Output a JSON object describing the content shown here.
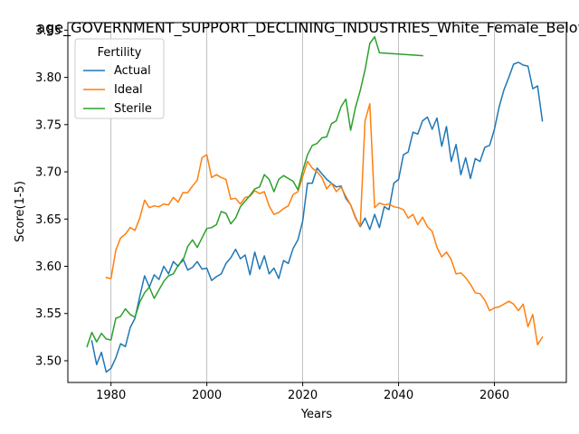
{
  "chart_data": {
    "type": "line",
    "title": "age_GOVERNMENT_SUPPORT_DECLINING_INDUSTRIES_White_Female_Below_",
    "xlabel": "Years",
    "ylabel": "Score(1-5)",
    "xlim": [
      1971,
      2075
    ],
    "ylim": [
      3.477,
      3.858
    ],
    "xticks": [
      1980,
      2000,
      2020,
      2040,
      2060
    ],
    "yticks": [
      3.5,
      3.55,
      3.6,
      3.65,
      3.7,
      3.75,
      3.8,
      3.85
    ],
    "xtick_labels": [
      "1980",
      "2000",
      "2020",
      "2040",
      "2060"
    ],
    "ytick_labels": [
      "3.50",
      "3.55",
      "3.60",
      "3.65",
      "3.70",
      "3.75",
      "3.80",
      "3.85"
    ],
    "grid": "vertical",
    "legend": {
      "title": "Fertility",
      "placement": "top-left"
    },
    "series": [
      {
        "name": "Actual",
        "color": "#1f77b4",
        "x": [
          1976,
          1977,
          1978,
          1979,
          1980,
          1981,
          1982,
          1983,
          1984,
          1985,
          1986,
          1987,
          1988,
          1989,
          1990,
          1991,
          1992,
          1993,
          1994,
          1995,
          1996,
          1997,
          1998,
          1999,
          2000,
          2001,
          2002,
          2003,
          2004,
          2005,
          2006,
          2007,
          2008,
          2009,
          2010,
          2011,
          2012,
          2013,
          2014,
          2015,
          2016,
          2017,
          2018,
          2019,
          2020,
          2021,
          2022,
          2023,
          2024,
          2025,
          2026,
          2027,
          2028,
          2029,
          2030,
          2031,
          2032,
          2033,
          2034,
          2035,
          2036,
          2037,
          2038,
          2039,
          2040,
          2041,
          2042,
          2043,
          2044,
          2045,
          2046,
          2047,
          2048,
          2049,
          2050,
          2051,
          2052,
          2053,
          2054,
          2055,
          2056,
          2057,
          2058,
          2059,
          2060,
          2061,
          2062,
          2063,
          2064,
          2065,
          2066,
          2067,
          2068,
          2069,
          2070
        ],
        "values": [
          3.521,
          3.496,
          3.509,
          3.488,
          3.492,
          3.503,
          3.518,
          3.515,
          3.535,
          3.545,
          3.568,
          3.59,
          3.578,
          3.591,
          3.586,
          3.6,
          3.592,
          3.605,
          3.6,
          3.608,
          3.596,
          3.599,
          3.605,
          3.597,
          3.598,
          3.585,
          3.589,
          3.592,
          3.603,
          3.609,
          3.618,
          3.608,
          3.612,
          3.591,
          3.615,
          3.597,
          3.611,
          3.592,
          3.598,
          3.587,
          3.606,
          3.603,
          3.619,
          3.628,
          3.648,
          3.688,
          3.688,
          3.704,
          3.698,
          3.692,
          3.688,
          3.684,
          3.685,
          3.672,
          3.665,
          3.652,
          3.642,
          3.651,
          3.639,
          3.655,
          3.641,
          3.663,
          3.66,
          3.688,
          3.692,
          3.718,
          3.721,
          3.742,
          3.74,
          3.754,
          3.758,
          3.745,
          3.757,
          3.727,
          3.748,
          3.711,
          3.729,
          3.697,
          3.715,
          3.693,
          3.714,
          3.711,
          3.726,
          3.728,
          3.745,
          3.769,
          3.787,
          3.8,
          3.814,
          3.816,
          3.813,
          3.812,
          3.788,
          3.791,
          3.754
        ]
      },
      {
        "name": "Ideal",
        "color": "#ff7f0e",
        "x": [
          1979,
          1980,
          1981,
          1982,
          1983,
          1984,
          1985,
          1986,
          1987,
          1988,
          1989,
          1990,
          1991,
          1992,
          1993,
          1994,
          1995,
          1996,
          1997,
          1998,
          1999,
          2000,
          2001,
          2002,
          2003,
          2004,
          2005,
          2006,
          2007,
          2008,
          2009,
          2010,
          2011,
          2012,
          2013,
          2014,
          2015,
          2016,
          2017,
          2018,
          2019,
          2020,
          2021,
          2022,
          2023,
          2024,
          2025,
          2026,
          2027,
          2028,
          2029,
          2030,
          2031,
          2032,
          2033,
          2034,
          2035,
          2036,
          2037,
          2038,
          2039,
          2040,
          2041,
          2042,
          2043,
          2044,
          2045,
          2046,
          2047,
          2048,
          2049,
          2050,
          2051,
          2052,
          2053,
          2054,
          2055,
          2056,
          2057,
          2058,
          2059,
          2060,
          2061,
          2062,
          2063,
          2064,
          2065,
          2066,
          2067,
          2068,
          2069,
          2070
        ],
        "values": [
          3.588,
          3.587,
          3.617,
          3.63,
          3.634,
          3.641,
          3.638,
          3.651,
          3.67,
          3.662,
          3.664,
          3.663,
          3.666,
          3.665,
          3.673,
          3.668,
          3.678,
          3.678,
          3.685,
          3.691,
          3.715,
          3.718,
          3.694,
          3.697,
          3.694,
          3.692,
          3.671,
          3.672,
          3.666,
          3.673,
          3.674,
          3.68,
          3.677,
          3.679,
          3.664,
          3.655,
          3.657,
          3.661,
          3.664,
          3.676,
          3.679,
          3.695,
          3.711,
          3.704,
          3.7,
          3.694,
          3.682,
          3.688,
          3.679,
          3.684,
          3.674,
          3.665,
          3.651,
          3.643,
          3.754,
          3.772,
          3.662,
          3.667,
          3.665,
          3.666,
          3.663,
          3.662,
          3.66,
          3.651,
          3.655,
          3.644,
          3.652,
          3.642,
          3.637,
          3.62,
          3.61,
          3.615,
          3.607,
          3.592,
          3.593,
          3.588,
          3.581,
          3.572,
          3.571,
          3.564,
          3.553,
          3.556,
          3.557,
          3.56,
          3.563,
          3.56,
          3.553,
          3.56,
          3.536,
          3.549,
          3.517,
          3.525
        ]
      },
      {
        "name": "Sterile",
        "color": "#2ca02c",
        "x": [
          1975,
          1976,
          1977,
          1978,
          1979,
          1980,
          1981,
          1982,
          1983,
          1984,
          1985,
          1986,
          1987,
          1988,
          1989,
          1990,
          1991,
          1992,
          1993,
          1994,
          1995,
          1996,
          1997,
          1998,
          1999,
          2000,
          2001,
          2002,
          2003,
          2004,
          2005,
          2006,
          2007,
          2008,
          2009,
          2010,
          2011,
          2012,
          2013,
          2014,
          2015,
          2016,
          2017,
          2018,
          2019,
          2020,
          2021,
          2022,
          2023,
          2024,
          2025,
          2026,
          2027,
          2028,
          2029,
          2030,
          2031,
          2032,
          2033,
          2034,
          2035,
          2036,
          2045
        ],
        "values": [
          3.515,
          3.53,
          3.52,
          3.529,
          3.523,
          3.522,
          3.545,
          3.547,
          3.555,
          3.549,
          3.546,
          3.562,
          3.572,
          3.578,
          3.566,
          3.575,
          3.584,
          3.59,
          3.592,
          3.601,
          3.606,
          3.621,
          3.628,
          3.62,
          3.63,
          3.64,
          3.641,
          3.644,
          3.658,
          3.656,
          3.645,
          3.651,
          3.663,
          3.669,
          3.675,
          3.682,
          3.684,
          3.697,
          3.692,
          3.679,
          3.692,
          3.696,
          3.693,
          3.69,
          3.681,
          3.701,
          3.718,
          3.728,
          3.73,
          3.736,
          3.737,
          3.751,
          3.754,
          3.769,
          3.777,
          3.744,
          3.768,
          3.786,
          3.808,
          3.836,
          3.843,
          3.826,
          3.823
        ]
      }
    ]
  }
}
